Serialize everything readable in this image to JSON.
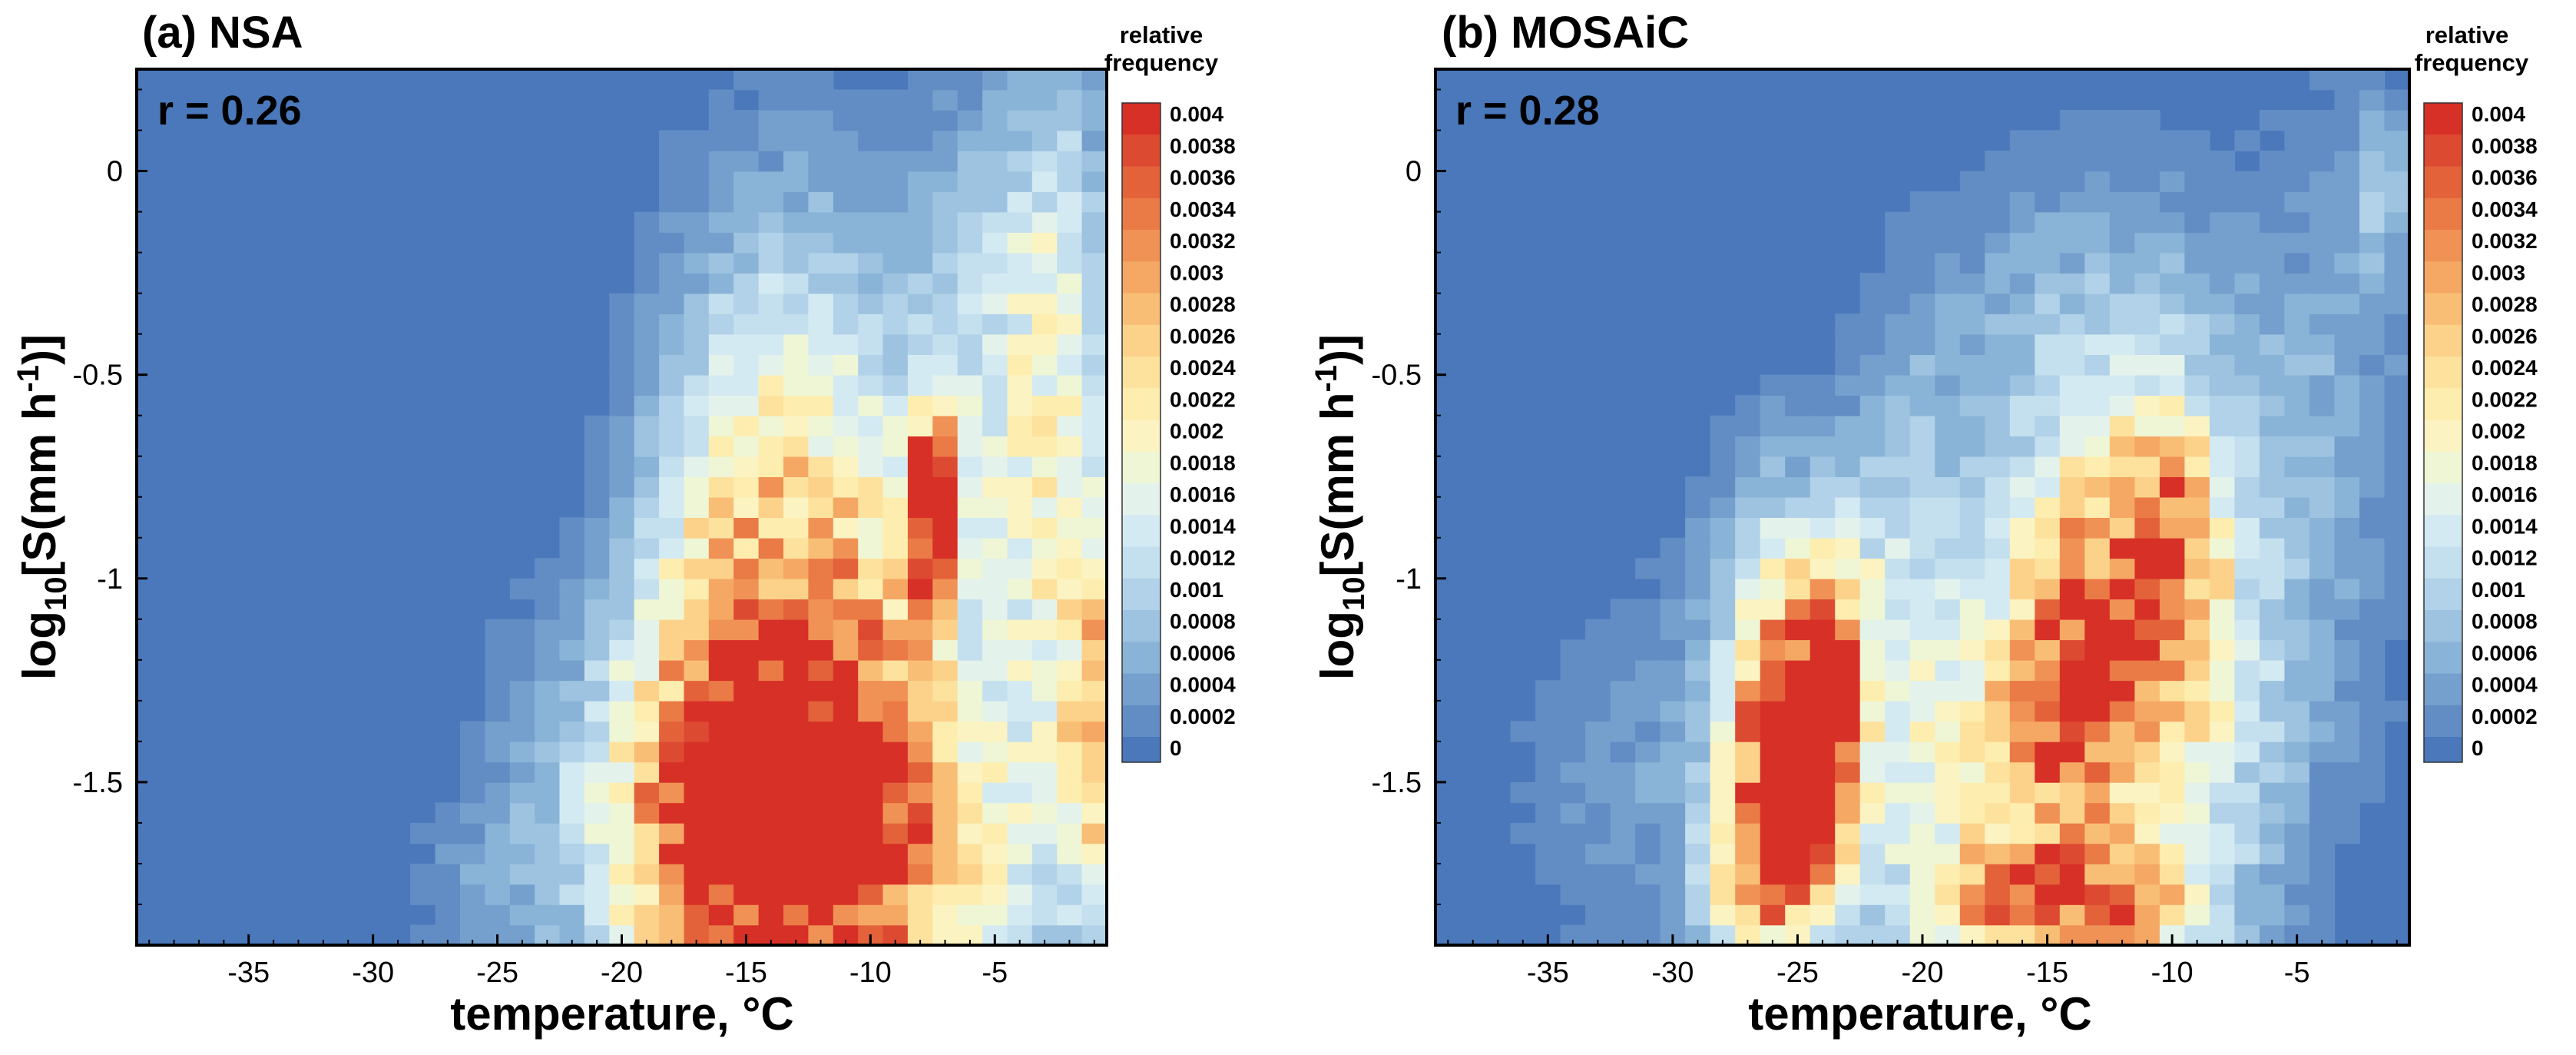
{
  "chart_data": [
    {
      "type": "heatmap",
      "title": "(a) NSA",
      "annotation": "r = 0.26",
      "xlabel": "temperature, °C",
      "ylabel_parts": [
        "log",
        "10",
        "[S(mm h",
        "-1",
        ")]"
      ],
      "x_ticks": [
        "-35",
        "-30",
        "-25",
        "-20",
        "-15",
        "-10",
        "-5"
      ],
      "y_ticks": [
        "0",
        "-0.5",
        "-1",
        "-1.5"
      ],
      "xlim": [
        -39.5,
        -0.5
      ],
      "ylim": [
        -1.9,
        0.25
      ],
      "colorbar_title": [
        "relative",
        "frequency"
      ],
      "blobs": [
        {
          "x": -12.5,
          "y": -1.7,
          "sx": 4.5,
          "sy": 0.28,
          "a": 0.0042
        },
        {
          "x": -14.5,
          "y": -1.35,
          "sx": 2.5,
          "sy": 0.28,
          "a": 0.0018
        },
        {
          "x": -10.0,
          "y": -1.35,
          "sx": 2.0,
          "sy": 0.35,
          "a": 0.0016
        },
        {
          "x": -15.0,
          "y": -0.85,
          "sx": 2.6,
          "sy": 0.35,
          "a": 0.0016
        },
        {
          "x": -7.5,
          "y": -0.75,
          "sx": 0.6,
          "sy": 0.1,
          "a": 0.004
        },
        {
          "x": -7.5,
          "y": -0.95,
          "sx": 0.6,
          "sy": 0.12,
          "a": 0.0028
        },
        {
          "x": -11.0,
          "y": -0.9,
          "sx": 3.0,
          "sy": 0.4,
          "a": 0.0012
        },
        {
          "x": -4.5,
          "y": -1.2,
          "sx": 2.5,
          "sy": 0.6,
          "a": 0.001
        },
        {
          "x": -2.0,
          "y": -0.8,
          "sx": 1.5,
          "sy": 0.6,
          "a": 0.0013
        },
        {
          "x": -17.5,
          "y": -1.5,
          "sx": 2.2,
          "sy": 0.4,
          "a": 0.0015
        },
        {
          "x": -22.0,
          "y": -1.5,
          "sx": 2.5,
          "sy": 0.35,
          "a": 0.0006
        },
        {
          "x": -1.0,
          "y": -1.4,
          "sx": 0.7,
          "sy": 0.3,
          "a": 0.002
        },
        {
          "x": -13.0,
          "y": -0.3,
          "sx": 4.0,
          "sy": 0.35,
          "a": 0.0006
        },
        {
          "x": -5.0,
          "y": -0.35,
          "sx": 2.0,
          "sy": 0.4,
          "a": 0.0008
        },
        {
          "x": -2.5,
          "y": -0.1,
          "sx": 1.5,
          "sy": 0.3,
          "a": 0.0005
        },
        {
          "x": -26.0,
          "y": -1.75,
          "sx": 1.8,
          "sy": 0.15,
          "a": 0.0004
        }
      ]
    },
    {
      "type": "heatmap",
      "title": "(b) MOSAiC",
      "annotation": "r = 0.28",
      "xlabel": "temperature, °C",
      "ylabel_parts": [
        "log",
        "10",
        "[S(mm h",
        "-1",
        ")]"
      ],
      "x_ticks": [
        "-35",
        "-30",
        "-25",
        "-20",
        "-15",
        "-10",
        "-5"
      ],
      "y_ticks": [
        "0",
        "-0.5",
        "-1",
        "-1.5"
      ],
      "xlim": [
        -39.5,
        -0.5
      ],
      "ylim": [
        -1.9,
        0.25
      ],
      "colorbar_title": [
        "relative",
        "frequency"
      ],
      "blobs": [
        {
          "x": -25.5,
          "y": -1.45,
          "sx": 1.5,
          "sy": 0.25,
          "a": 0.0036
        },
        {
          "x": -25.0,
          "y": -1.65,
          "sx": 2.0,
          "sy": 0.2,
          "a": 0.002
        },
        {
          "x": -23.5,
          "y": -1.25,
          "sx": 1.0,
          "sy": 0.2,
          "a": 0.002
        },
        {
          "x": -25.0,
          "y": -1.1,
          "sx": 2.5,
          "sy": 0.3,
          "a": 0.0015
        },
        {
          "x": -15.0,
          "y": -1.55,
          "sx": 3.5,
          "sy": 0.35,
          "a": 0.0022
        },
        {
          "x": -13.0,
          "y": -1.0,
          "sx": 2.5,
          "sy": 0.25,
          "a": 0.002
        },
        {
          "x": -10.0,
          "y": -0.9,
          "sx": 1.5,
          "sy": 0.25,
          "a": 0.0018
        },
        {
          "x": -14.0,
          "y": -1.3,
          "sx": 2.5,
          "sy": 0.2,
          "a": 0.0016
        },
        {
          "x": -17.5,
          "y": -1.8,
          "sx": 2.0,
          "sy": 0.1,
          "a": 0.002
        },
        {
          "x": -12.0,
          "y": -1.8,
          "sx": 2.5,
          "sy": 0.1,
          "a": 0.0022
        },
        {
          "x": -20.0,
          "y": -1.6,
          "sx": 1.5,
          "sy": 0.35,
          "a": 0.0004
        },
        {
          "x": -13.0,
          "y": -0.5,
          "sx": 4.5,
          "sy": 0.35,
          "a": 0.001
        },
        {
          "x": -20.5,
          "y": -1.0,
          "sx": 1.5,
          "sy": 0.4,
          "a": 0.0009
        },
        {
          "x": -32.0,
          "y": -1.5,
          "sx": 3.0,
          "sy": 0.3,
          "a": 0.0005
        },
        {
          "x": -8.0,
          "y": -1.3,
          "sx": 2.5,
          "sy": 0.4,
          "a": 0.0012
        },
        {
          "x": -3.5,
          "y": -0.6,
          "sx": 2.5,
          "sy": 0.6,
          "a": 0.0005
        },
        {
          "x": -1.5,
          "y": -0.05,
          "sx": 0.8,
          "sy": 0.15,
          "a": 0.0008
        },
        {
          "x": -27.5,
          "y": -1.8,
          "sx": 1.5,
          "sy": 0.1,
          "a": 0.0012
        }
      ]
    }
  ],
  "colorbar": {
    "levels": [
      "0.004",
      "0.0038",
      "0.0036",
      "0.0034",
      "0.0032",
      "0.003",
      "0.0028",
      "0.0026",
      "0.0024",
      "0.0022",
      "0.002",
      "0.0018",
      "0.0016",
      "0.0014",
      "0.0012",
      "0.001",
      "0.0008",
      "0.0006",
      "0.0004",
      "0.0002",
      "0"
    ],
    "colors": [
      "#d73027",
      "#dd4a32",
      "#e3623a",
      "#ea7a46",
      "#f09255",
      "#f5a864",
      "#f9be76",
      "#fcd28a",
      "#fde29e",
      "#fdedaf",
      "#fbf3c1",
      "#eef6d6",
      "#e4f2ec",
      "#d4eaf2",
      "#c4dfee",
      "#b1d2e8",
      "#9dc3e0",
      "#89b4d7",
      "#759fcd",
      "#628dc4",
      "#4a78bb"
    ]
  }
}
